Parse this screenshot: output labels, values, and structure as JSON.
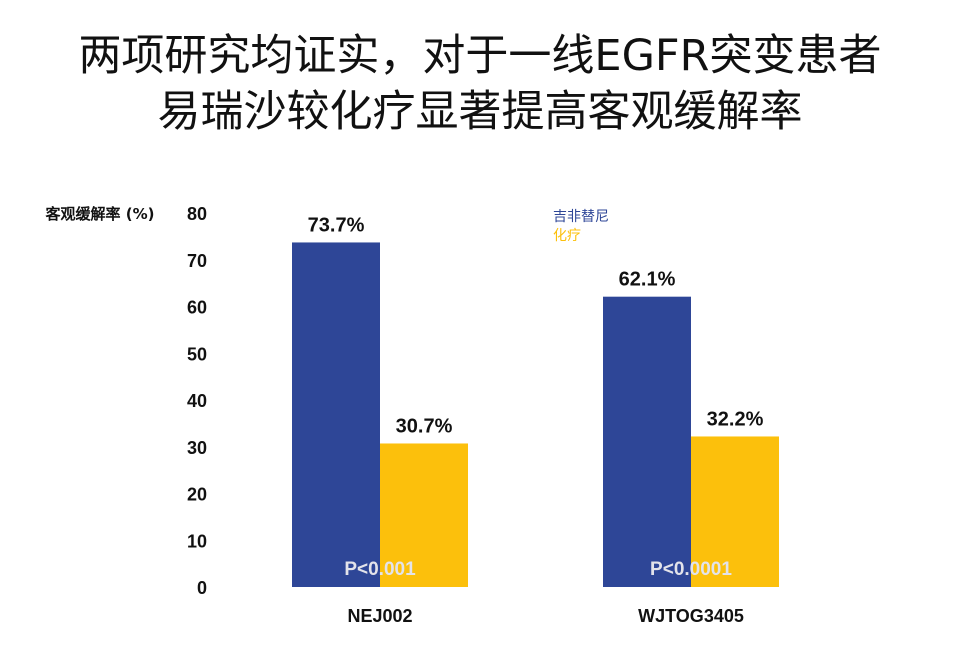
{
  "title_lines": [
    "两项研究均证实，对于一线EGFR突变患者",
    "易瑞沙较化疗显著提高客观缓解率"
  ],
  "colors": {
    "gefitinib": "#2e4697",
    "chemo": "#fcc00c",
    "pvalue_text": "#e3e3ea",
    "text": "#111111"
  },
  "chart_data": {
    "type": "bar",
    "ylabel": "客观缓解率 (%)",
    "ylim": [
      0,
      80
    ],
    "yticks": [
      0,
      10,
      20,
      30,
      40,
      50,
      60,
      70,
      80
    ],
    "categories": [
      "NEJ002",
      "WJTOG3405"
    ],
    "series": [
      {
        "name": "吉非替尼",
        "values": [
          73.7,
          62.1
        ],
        "labels": [
          "73.7%",
          "62.1%"
        ]
      },
      {
        "name": "化疗",
        "values": [
          30.7,
          32.2
        ],
        "labels": [
          "30.7%",
          "32.2%"
        ]
      }
    ],
    "p_values": [
      "P<0.001",
      "P<0.0001"
    ],
    "legend": "top-right",
    "grid": false
  }
}
